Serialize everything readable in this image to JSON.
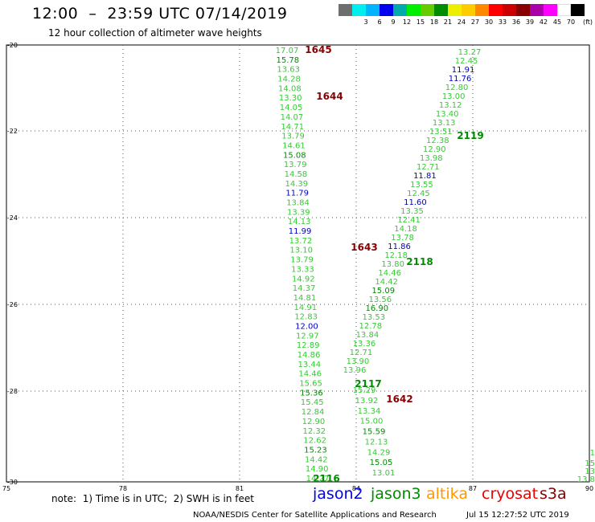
{
  "header": {
    "title": "12:00  –  23:59 UTC 07/14/2019",
    "subtitle": "12 hour collection of altimeter wave heights"
  },
  "color_scale": {
    "unit": "(ft)",
    "swatches": [
      {
        "color": "#6e6e6e",
        "label": ""
      },
      {
        "color": "#00eeee",
        "label": "3"
      },
      {
        "color": "#00b4ff",
        "label": "6"
      },
      {
        "color": "#0000ee",
        "label": "9"
      },
      {
        "color": "#00aaaa",
        "label": "12"
      },
      {
        "color": "#00ee00",
        "label": "15"
      },
      {
        "color": "#66cc00",
        "label": "18"
      },
      {
        "color": "#008c00",
        "label": "21"
      },
      {
        "color": "#eeee00",
        "label": "24"
      },
      {
        "color": "#ffcc00",
        "label": "27"
      },
      {
        "color": "#ff8800",
        "label": "30"
      },
      {
        "color": "#ff0000",
        "label": "33"
      },
      {
        "color": "#cc0000",
        "label": "36"
      },
      {
        "color": "#880000",
        "label": "39"
      },
      {
        "color": "#aa00aa",
        "label": "42"
      },
      {
        "color": "#ff00ff",
        "label": "45"
      },
      {
        "color": "#ffffff",
        "label": "70"
      },
      {
        "color": "#000000",
        "label": ""
      }
    ]
  },
  "axes": {
    "lon_labels": [
      "75",
      "78",
      "81",
      "84",
      "87",
      "90"
    ],
    "lat_labels": [
      "-20",
      "-22",
      "-24",
      "-26",
      "-28",
      "-30"
    ]
  },
  "colors": {
    "green": "#33cc33",
    "dark_green": "#008c00",
    "blue": "#0000cc",
    "dark_red": "#880000",
    "jason2": "#0000ee",
    "jason3": "#008c00",
    "altika": "#ff9900",
    "cryosat": "#ee0000",
    "s3a": "#880000"
  },
  "track_a": [
    {
      "v": "17.07",
      "c": "green"
    },
    {
      "v": "15.78",
      "c": "dark_green"
    },
    {
      "v": "13.63",
      "c": "green"
    },
    {
      "v": "14.28",
      "c": "green"
    },
    {
      "v": "14.08",
      "c": "green"
    },
    {
      "v": "13.30",
      "c": "green"
    },
    {
      "v": "14.05",
      "c": "green"
    },
    {
      "v": "14.07",
      "c": "green"
    },
    {
      "v": "14.71",
      "c": "green"
    },
    {
      "v": "13.79",
      "c": "green"
    },
    {
      "v": "14.61",
      "c": "green"
    },
    {
      "v": "15.08",
      "c": "dark_green"
    },
    {
      "v": "13.79",
      "c": "green"
    },
    {
      "v": "14.58",
      "c": "green"
    },
    {
      "v": "14.39",
      "c": "green"
    },
    {
      "v": "11.79",
      "c": "blue"
    },
    {
      "v": "13.84",
      "c": "green"
    },
    {
      "v": "13.39",
      "c": "green"
    },
    {
      "v": "14.13",
      "c": "green"
    },
    {
      "v": "11.99",
      "c": "blue"
    },
    {
      "v": "13.72",
      "c": "green"
    },
    {
      "v": "13.10",
      "c": "green"
    },
    {
      "v": "13.79",
      "c": "green"
    },
    {
      "v": "13.33",
      "c": "green"
    },
    {
      "v": "14.92",
      "c": "green"
    },
    {
      "v": "14.37",
      "c": "green"
    },
    {
      "v": "14.81",
      "c": "green"
    },
    {
      "v": "14.91",
      "c": "green"
    },
    {
      "v": "12.83",
      "c": "green"
    },
    {
      "v": "12.00",
      "c": "blue"
    },
    {
      "v": "12.97",
      "c": "green"
    },
    {
      "v": "12.89",
      "c": "green"
    },
    {
      "v": "14.86",
      "c": "green"
    },
    {
      "v": "13.44",
      "c": "green"
    },
    {
      "v": "14.46",
      "c": "green"
    },
    {
      "v": "15.65",
      "c": "green"
    },
    {
      "v": "15.36",
      "c": "dark_green"
    },
    {
      "v": "15.45",
      "c": "green"
    },
    {
      "v": "12.84",
      "c": "green"
    },
    {
      "v": "12.90",
      "c": "green"
    },
    {
      "v": "12.32",
      "c": "green"
    },
    {
      "v": "12.62",
      "c": "green"
    },
    {
      "v": "15.23",
      "c": "dark_green"
    },
    {
      "v": "14.42",
      "c": "green"
    },
    {
      "v": "14.90",
      "c": "green"
    },
    {
      "v": "14.27",
      "c": "green"
    }
  ],
  "track_b": [
    {
      "v": "13.27",
      "c": "green"
    },
    {
      "v": "12.45",
      "c": "green"
    },
    {
      "v": "11.91",
      "c": "blue"
    },
    {
      "v": "11.76",
      "c": "blue"
    },
    {
      "v": "12.80",
      "c": "green"
    },
    {
      "v": "13.00",
      "c": "green"
    },
    {
      "v": "13.12",
      "c": "green"
    },
    {
      "v": "13.40",
      "c": "green"
    },
    {
      "v": "13.13",
      "c": "green"
    },
    {
      "v": "13.51",
      "c": "green"
    },
    {
      "v": "12.38",
      "c": "green"
    },
    {
      "v": "12.90",
      "c": "green"
    },
    {
      "v": "13.98",
      "c": "green"
    },
    {
      "v": "12.71",
      "c": "green"
    },
    {
      "v": "11.81",
      "c": "blue"
    },
    {
      "v": "13.55",
      "c": "green"
    },
    {
      "v": "12.45",
      "c": "green"
    },
    {
      "v": "11.60",
      "c": "blue"
    },
    {
      "v": "13.35",
      "c": "green"
    },
    {
      "v": "12.41",
      "c": "green"
    },
    {
      "v": "14.18",
      "c": "green"
    },
    {
      "v": "13.78",
      "c": "green"
    },
    {
      "v": "11.86",
      "c": "blue"
    },
    {
      "v": "12.18",
      "c": "green"
    },
    {
      "v": "13.80",
      "c": "green"
    },
    {
      "v": "14.46",
      "c": "green"
    },
    {
      "v": "14.42",
      "c": "green"
    },
    {
      "v": "15.09",
      "c": "dark_green"
    },
    {
      "v": "13.56",
      "c": "green"
    },
    {
      "v": "16.90",
      "c": "dark_green"
    },
    {
      "v": "13.53",
      "c": "green"
    },
    {
      "v": "12.78",
      "c": "green"
    },
    {
      "v": "13.84",
      "c": "green"
    },
    {
      "v": "13.36",
      "c": "green"
    },
    {
      "v": "12.71",
      "c": "green"
    },
    {
      "v": "13.90",
      "c": "green"
    },
    {
      "v": "13.96",
      "c": "green"
    }
  ],
  "track_c": [
    {
      "v": "15.29",
      "c": "green"
    },
    {
      "v": "13.92",
      "c": "green"
    },
    {
      "v": "13.34",
      "c": "green"
    },
    {
      "v": "15.00",
      "c": "green"
    },
    {
      "v": "15.59",
      "c": "dark_green"
    },
    {
      "v": "12.13",
      "c": "green"
    },
    {
      "v": "14.29",
      "c": "green"
    },
    {
      "v": "15.05",
      "c": "dark_green"
    },
    {
      "v": "13.01",
      "c": "green"
    }
  ],
  "edge_partial": [
    "1",
    "15",
    "13",
    "13.8"
  ],
  "pass_ids": [
    {
      "id": "1645",
      "c": "dark_red"
    },
    {
      "id": "1644",
      "c": "dark_red"
    },
    {
      "id": "2119",
      "c": "dark_green"
    },
    {
      "id": "1643",
      "c": "dark_red"
    },
    {
      "id": "2118",
      "c": "dark_green"
    },
    {
      "id": "2117",
      "c": "dark_green"
    },
    {
      "id": "1642",
      "c": "dark_red"
    },
    {
      "id": "2116",
      "c": "dark_green"
    }
  ],
  "footer": {
    "note": "note:  1) Time is in UTC;  2) SWH is in feet",
    "legend": [
      {
        "label": "jason2",
        "c": "jason2"
      },
      {
        "label": "jason3",
        "c": "jason3"
      },
      {
        "label": "altika",
        "c": "altika"
      },
      {
        "label": "cryosat",
        "c": "cryosat"
      },
      {
        "label": "s3a",
        "c": "s3a"
      }
    ],
    "credit": "NOAA/NESDIS Center for Satellite Applications and Research",
    "timestamp": "Jul 15 12:27:52 UTC 2019"
  }
}
